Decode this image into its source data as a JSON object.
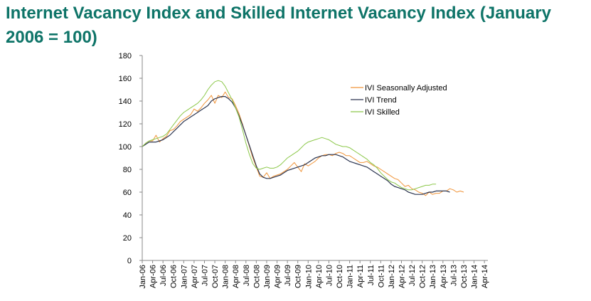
{
  "chart_data": {
    "type": "line",
    "title": "Internet Vacancy Index and Skilled Internet Vacancy Index (January 2006 = 100)",
    "xlabel": "",
    "ylabel": "",
    "ylim": [
      0,
      180
    ],
    "y_ticks": [
      "0",
      "20",
      "40",
      "60",
      "80",
      "100",
      "120",
      "140",
      "160",
      "180"
    ],
    "x_ticks": [
      "Jan-06",
      "Apr-06",
      "Jul-06",
      "Oct-06",
      "Jan-07",
      "Apr-07",
      "Jul-07",
      "Oct-07",
      "Jan-08",
      "Apr-08",
      "Jul-08",
      "Oct-08",
      "Jan-09",
      "Apr-09",
      "Jul-09",
      "Oct-09",
      "Jan-10",
      "Apr-10",
      "Jul-10",
      "Oct-10",
      "Jan-11",
      "Apr-11",
      "Jul-11",
      "Oct-11",
      "Jan-12",
      "Apr-12",
      "Jul-12",
      "Oct-12",
      "Jan-13",
      "Apr-13",
      "Jul-13",
      "Oct-13",
      "Jan-14",
      "Apr-14"
    ],
    "grid": false,
    "legend_position": "top-right",
    "series": [
      {
        "name": "IVI Seasonally Adjusted",
        "color": "#f0953a",
        "values": [
          100,
          103,
          105,
          105,
          110,
          104,
          107,
          109,
          114,
          115,
          118,
          122,
          124,
          126,
          128,
          133,
          131,
          134,
          138,
          141,
          145,
          138,
          145,
          143,
          148,
          143,
          142,
          136,
          129,
          120,
          110,
          100,
          90,
          82,
          74,
          73,
          77,
          72,
          74,
          75,
          76,
          78,
          80,
          83,
          86,
          82,
          78,
          85,
          83,
          85,
          87,
          90,
          92,
          93,
          93,
          92,
          94,
          95,
          94,
          92,
          92,
          90,
          88,
          86,
          86,
          87,
          85,
          83,
          82,
          80,
          78,
          76,
          74,
          72,
          71,
          68,
          65,
          66,
          63,
          62,
          60,
          59,
          57,
          60,
          58,
          59,
          59,
          61,
          61,
          63,
          62,
          60,
          61,
          60
        ]
      },
      {
        "name": "IVI Trend",
        "color": "#2c3550",
        "values": [
          100,
          102,
          104,
          104,
          104,
          105,
          106,
          108,
          110,
          113,
          116,
          119,
          122,
          124,
          126,
          128,
          130,
          132,
          134,
          136,
          140,
          142,
          143,
          144,
          144,
          142,
          139,
          134,
          127,
          119,
          110,
          101,
          92,
          83,
          76,
          73,
          72,
          72,
          73,
          74,
          75,
          77,
          79,
          80,
          81,
          82,
          83,
          84,
          86,
          88,
          90,
          91,
          92,
          92,
          93,
          93,
          93,
          92,
          91,
          89,
          87,
          86,
          85,
          84,
          83,
          82,
          80,
          78,
          76,
          74,
          72,
          70,
          67,
          65,
          64,
          63,
          62,
          60,
          59,
          58,
          58,
          58,
          59,
          60,
          60,
          61,
          61,
          61,
          61,
          60
        ]
      },
      {
        "name": "IVI Skilled",
        "color": "#8cc84a",
        "values": [
          100,
          103,
          105,
          106,
          107,
          108,
          109,
          111,
          115,
          119,
          123,
          127,
          130,
          132,
          134,
          136,
          138,
          141,
          145,
          150,
          154,
          157,
          158,
          157,
          153,
          147,
          141,
          134,
          126,
          115,
          103,
          93,
          85,
          81,
          80,
          81,
          82,
          81,
          81,
          82,
          84,
          87,
          90,
          92,
          94,
          96,
          99,
          102,
          104,
          105,
          106,
          107,
          108,
          107,
          106,
          104,
          102,
          101,
          100,
          100,
          99,
          97,
          95,
          93,
          91,
          89,
          86,
          84,
          81,
          77,
          74,
          71,
          69,
          68,
          66,
          64,
          63,
          62,
          62,
          63,
          64,
          65,
          66,
          66,
          67,
          67
        ]
      }
    ]
  }
}
